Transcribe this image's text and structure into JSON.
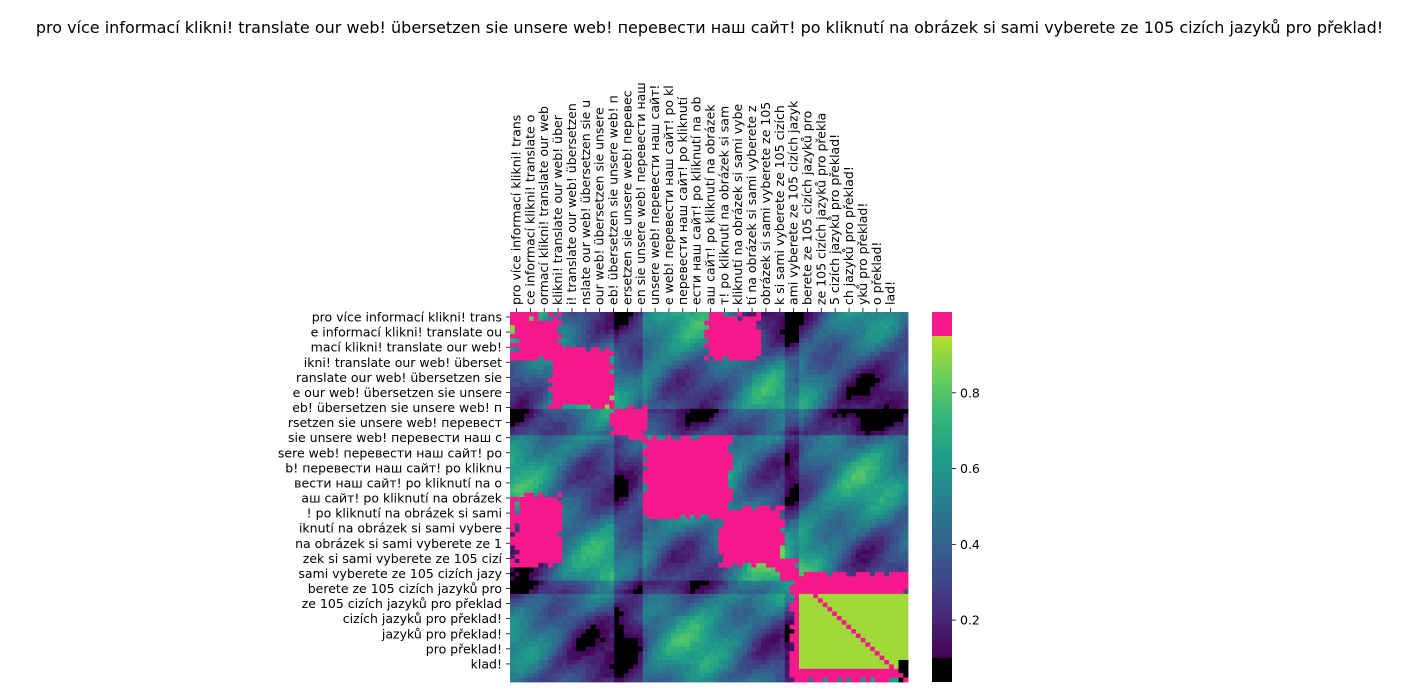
{
  "chart_data": {
    "type": "heatmap",
    "title": "pro více informací klikni! translate our web! übersetzen sie unsere web! перевести наш сайт! po kliknutí na obrázek si sami vyberete ze 105 cizích jazyků pro překlad!",
    "colormap": "viridis",
    "over_color": "#f7198c",
    "under_color": "#000000",
    "value_range": [
      0.1,
      0.95
    ],
    "x_tick_labels": [
      "pro více informací klikni! trans",
      "ce informací klikni! translate o",
      "ormací klikni! translate our web",
      " klikni! translate our web! über",
      "i! translate our web! übersetzen",
      "nslate our web! übersetzen sie u",
      " our web! übersetzen sie unsere",
      "eb! übersetzen sie unsere web! п",
      "ersetzen sie unsere web! перевес",
      "en sie unsere web! перевести наш",
      " unsere web! перевести наш сайт!",
      "e web! перевести наш сайт! po kl",
      " перевести наш сайт! po kliknutí",
      "ести наш сайт! po kliknutí na ob",
      "аш сайт! po kliknutí na obrázek",
      "т! po kliknutí na obrázek si sam",
      "kliknutí na obrázek si sami vybe",
      "tí na obrázek si sami vyberete z",
      "obrázek si sami vyberete ze 105",
      "k si sami vyberete ze 105 cizích",
      "ami vyberete ze 105 cizích jazyk",
      "berete ze 105 cizích jazyků pro",
      " ze 105 cizích jazyků pro překla",
      "5 cizích jazyků pro překlad!",
      "ch jazyků pro překlad!",
      "yků pro překlad!",
      "o překlad!",
      "lad!"
    ],
    "y_tick_labels": [
      "pro více informací klikni! trans",
      "e informací klikni! translate ou",
      "mací klikni! translate our web! ",
      "ikni! translate our web! überset",
      "ranslate our web! übersetzen sie",
      "e our web! übersetzen sie unsere",
      "eb! übersetzen sie unsere web! п",
      "rsetzen sie unsere web! перевест",
      "sie unsere web! перевести наш с",
      "sere web! перевести наш сайт! po",
      "b! перевести наш сайт! po kliknu",
      "вести наш сайт! po kliknutí na o",
      "аш сайт! po kliknutí na obrázek ",
      "! po kliknutí na obrázek si sami",
      "iknutí na obrázek si sami vybere",
      "na obrázek si sami vyberete ze 1",
      "zek si sami vyberete ze 105 cizí",
      "sami vyberete ze 105 cizích jazy",
      "berete ze 105 cizích jazyků pro ",
      " ze 105 cizích jazyků pro překlad",
      "cizích jazyků pro překlad!",
      "jazyků pro překlad!",
      "pro překlad!",
      "klad!"
    ],
    "colorbar_ticks": [
      "0.2",
      "0.4",
      "0.6",
      "0.8"
    ],
    "matrix_size": 84,
    "blocks": [
      {
        "i0": 0,
        "i1": 0.12,
        "j0": 0,
        "j1": 0.12,
        "v": 0.99
      },
      {
        "i0": 0.09,
        "i1": 0.26,
        "j0": 0.09,
        "j1": 0.26,
        "v": 0.99
      },
      {
        "i0": 0.24,
        "i1": 0.34,
        "j0": 0.24,
        "j1": 0.34,
        "v": 0.99
      },
      {
        "i0": 0.33,
        "i1": 0.55,
        "j0": 0.33,
        "j1": 0.55,
        "v": 0.99
      },
      {
        "i0": 0.52,
        "i1": 0.68,
        "j0": 0.52,
        "j1": 0.68,
        "v": 0.99
      },
      {
        "i0": 0.66,
        "i1": 0.72,
        "j0": 0.66,
        "j1": 0.72,
        "v": 0.99
      },
      {
        "i0": 0.7,
        "i1": 1.0,
        "j0": 0.7,
        "j1": 1.0,
        "v": 0.99
      },
      {
        "i0": 0.48,
        "i1": 0.68,
        "j0": 0,
        "j1": 0.12,
        "v": 0.99
      },
      {
        "i0": 0,
        "i1": 0.12,
        "j0": 0.48,
        "j1": 0.62,
        "v": 0.99
      },
      {
        "i0": 0.76,
        "i1": 0.96,
        "j0": 0.72,
        "j1": 1.0,
        "v": 0.92
      },
      {
        "i0": 0.94,
        "i1": 1.0,
        "j0": 0.97,
        "j1": 1.0,
        "v": 0.05
      }
    ]
  }
}
